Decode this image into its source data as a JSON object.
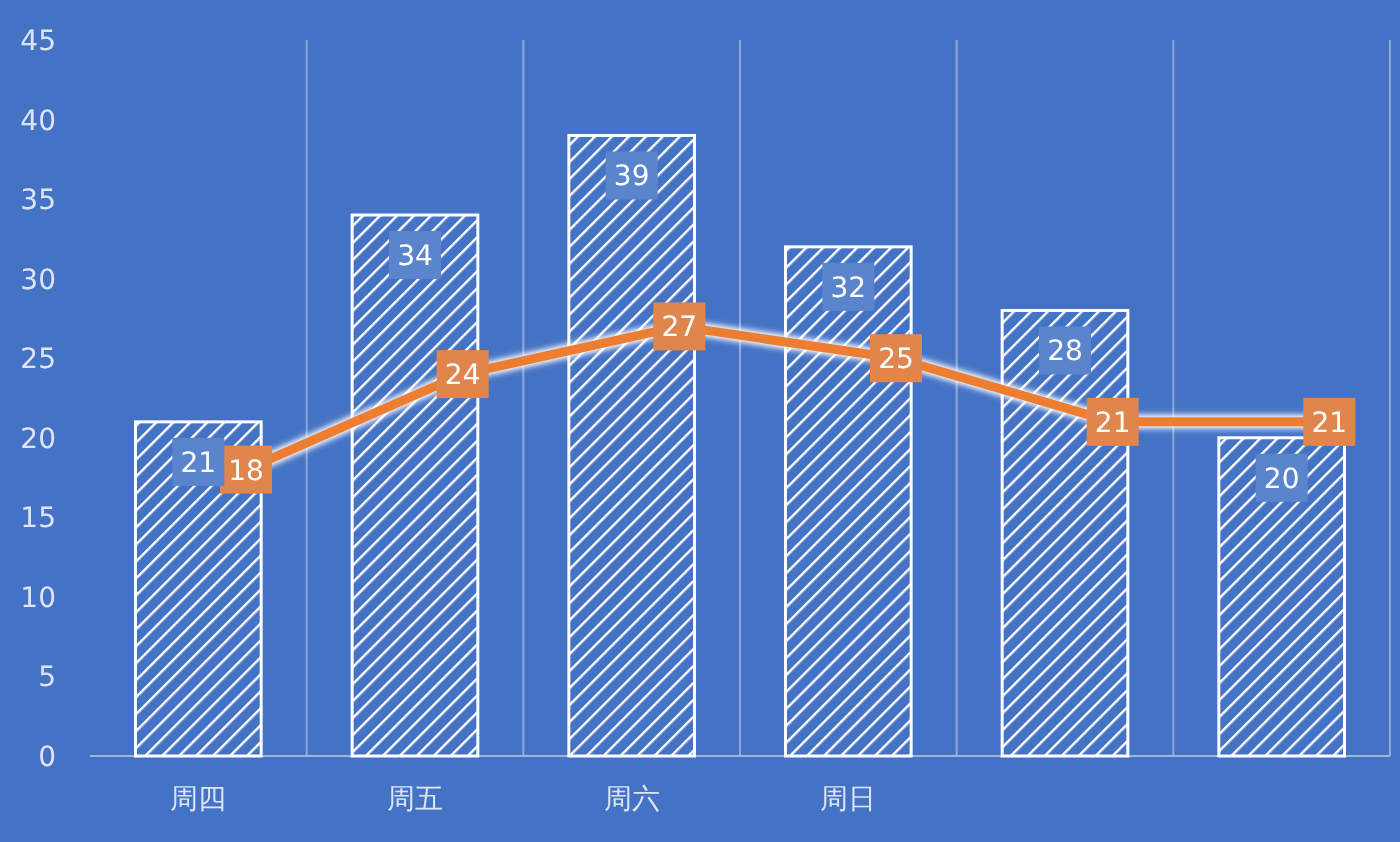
{
  "chart_data": {
    "type": "bar",
    "categories": [
      "周四",
      "周五",
      "周六",
      "周日",
      null,
      null
    ],
    "series": [
      {
        "color": "#ffffff",
        "values": [
          21,
          34,
          39,
          32,
          28,
          20
        ]
      },
      {
        "type": "line",
        "color": "#ed7d31",
        "values": [
          18,
          24,
          27,
          25,
          21,
          21
        ]
      }
    ],
    "ylim": [
      0,
      45
    ],
    "yticks": [
      0,
      5,
      10,
      15,
      20,
      25,
      30,
      35,
      40,
      45
    ],
    "grid": "x",
    "data_labels": true,
    "marker": "square",
    "line_style": "solid"
  }
}
